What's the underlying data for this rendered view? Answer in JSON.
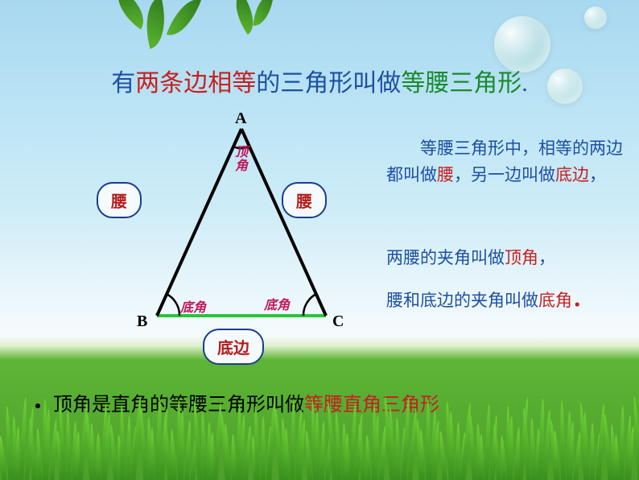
{
  "title": {
    "parts": [
      {
        "text": "有",
        "color": "#1e4fa3"
      },
      {
        "text": "两条边相等",
        "color": "#c62020"
      },
      {
        "text": "的三角形叫做",
        "color": "#1e4fa3"
      },
      {
        "text": "等腰三角形",
        "color": "#1a8a2e"
      },
      {
        "text": ".",
        "color": "#1e4fa3"
      }
    ]
  },
  "diagram": {
    "vertices": {
      "A": "A",
      "B": "B",
      "C": "C"
    },
    "callouts": {
      "left_leg": "腰",
      "right_leg": "腰",
      "base": "底边"
    },
    "inline": {
      "apex_angle": "顶角",
      "base_angle_left": "底角",
      "base_angle_right": "底角"
    },
    "triangle_stroke": "#000000",
    "base_edge_color": "#29c43a",
    "callout_border": "#1a3d8f",
    "callout_text_color": "#b51a1a",
    "inline_label_color": "#c2185b"
  },
  "right": {
    "para1": [
      {
        "text": "　　等腰三角形中，相等的两边都叫做",
        "color": "#1e4fa3"
      },
      {
        "text": "腰",
        "color": "#c62020"
      },
      {
        "text": "，另一边叫做",
        "color": "#1e4fa3"
      },
      {
        "text": "底边",
        "color": "#c62020"
      },
      {
        "text": "，",
        "color": "#1e4fa3"
      }
    ],
    "para2": [
      {
        "text": "两腰的夹角叫做",
        "color": "#1e4fa3"
      },
      {
        "text": "顶角",
        "color": "#c62020"
      },
      {
        "text": "，",
        "color": "#1e4fa3"
      }
    ],
    "para3": [
      {
        "text": "腰和底边的夹角叫做",
        "color": "#1e4fa3"
      },
      {
        "text": "底角",
        "color": "#c62020"
      },
      {
        "text": "．",
        "color": "#c62020"
      }
    ]
  },
  "bullet": {
    "parts": [
      {
        "text": "顶角是直角的等腰三角形叫做",
        "color": "#000000"
      },
      {
        "text": "等腰直角三角形",
        "color": "#c62020"
      }
    ]
  }
}
